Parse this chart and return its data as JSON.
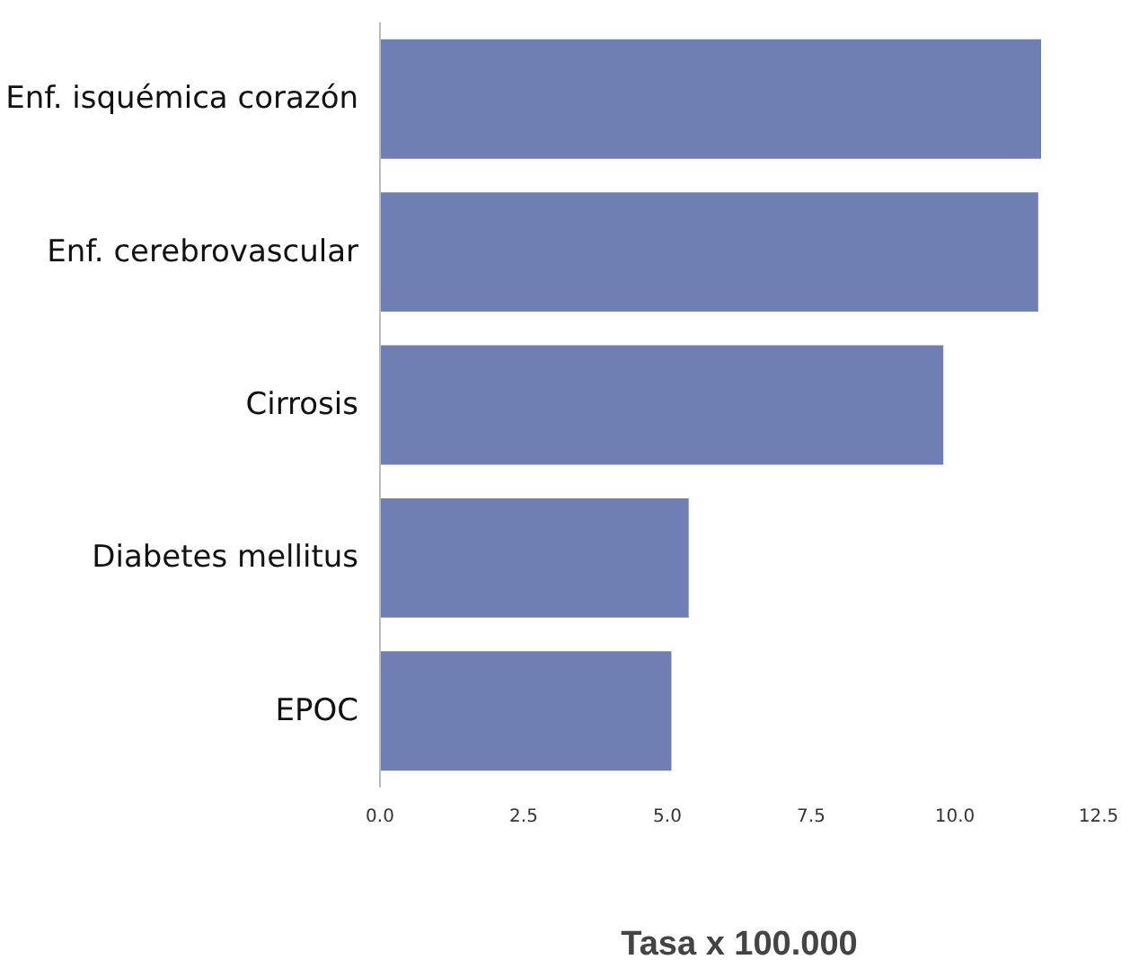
{
  "chart_data": {
    "type": "bar",
    "orientation": "horizontal",
    "xlabel": "Tasa x 100.000",
    "categories": [
      "Enf. isquémica corazón",
      "Enf. cerebrovascular",
      "Cirrosis",
      "Diabetes mellitus",
      "EPOC"
    ],
    "values": [
      11.5,
      11.45,
      9.8,
      5.37,
      5.07
    ],
    "color": "#6f7fb3",
    "xlim": [
      0,
      12.5
    ],
    "xticks": [
      {
        "value": 0,
        "label": "0.0"
      },
      {
        "value": 2.5,
        "label": "2.5"
      },
      {
        "value": 5,
        "label": "5.0"
      },
      {
        "value": 7.5,
        "label": "7.5"
      },
      {
        "value": 10,
        "label": "10.0"
      },
      {
        "value": 12.5,
        "label": "12.5"
      }
    ],
    "grid": false
  }
}
